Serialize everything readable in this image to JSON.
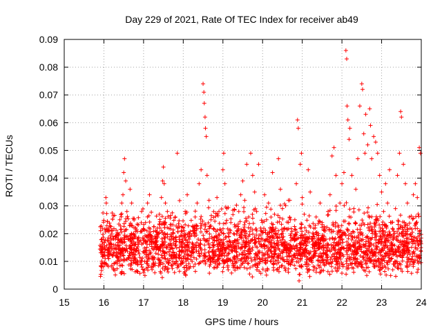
{
  "chart_data": {
    "type": "scatter",
    "title": "Day 229 of 2021, Rate Of TEC Index for receiver ab49",
    "xlabel": "GPS time / hours",
    "ylabel": "ROTI / TECUs",
    "xlim": [
      15,
      24
    ],
    "ylim": [
      0,
      0.09
    ],
    "xticks": [
      "15",
      "16",
      "17",
      "18",
      "19",
      "20",
      "21",
      "22",
      "23",
      "24"
    ],
    "yticks": [
      "0",
      "0.01",
      "0.02",
      "0.03",
      "0.04",
      "0.05",
      "0.06",
      "0.07",
      "0.08",
      "0.09"
    ],
    "grid": true,
    "marker": "plus",
    "color": "#ff0000",
    "series": [
      {
        "points": [
          [
            15.95,
            0.018
          ],
          [
            15.98,
            0.012
          ],
          [
            16.02,
            0.009
          ],
          [
            16.05,
            0.033
          ],
          [
            16.06,
            0.031
          ],
          [
            16.08,
            0.014
          ],
          [
            16.12,
            0.011
          ],
          [
            16.15,
            0.021
          ],
          [
            16.2,
            0.008
          ],
          [
            16.25,
            0.016
          ],
          [
            16.3,
            0.012
          ],
          [
            16.35,
            0.02
          ],
          [
            16.4,
            0.025
          ],
          [
            16.45,
            0.031
          ],
          [
            16.48,
            0.034
          ],
          [
            16.5,
            0.042
          ],
          [
            16.52,
            0.047
          ],
          [
            16.55,
            0.039
          ],
          [
            16.58,
            0.028
          ],
          [
            16.62,
            0.018
          ],
          [
            16.66,
            0.036
          ],
          [
            16.7,
            0.031
          ],
          [
            16.75,
            0.014
          ],
          [
            16.8,
            0.022
          ],
          [
            16.85,
            0.009
          ],
          [
            16.9,
            0.017
          ],
          [
            16.95,
            0.028
          ],
          [
            17.0,
            0.006
          ],
          [
            17.02,
            0.013
          ],
          [
            17.05,
            0.024
          ],
          [
            17.1,
            0.031
          ],
          [
            17.15,
            0.034
          ],
          [
            17.2,
            0.019
          ],
          [
            17.25,
            0.011
          ],
          [
            17.3,
            0.016
          ],
          [
            17.35,
            0.022
          ],
          [
            17.4,
            0.027
          ],
          [
            17.45,
            0.033
          ],
          [
            17.48,
            0.039
          ],
          [
            17.5,
            0.044
          ],
          [
            17.52,
            0.038
          ],
          [
            17.55,
            0.031
          ],
          [
            17.6,
            0.028
          ],
          [
            17.65,
            0.018
          ],
          [
            17.7,
            0.012
          ],
          [
            17.75,
            0.02
          ],
          [
            17.8,
            0.026
          ],
          [
            17.85,
            0.049
          ],
          [
            17.9,
            0.015
          ],
          [
            17.95,
            0.009
          ],
          [
            18.0,
            0.022
          ],
          [
            18.05,
            0.028
          ],
          [
            18.1,
            0.034
          ],
          [
            18.15,
            0.018
          ],
          [
            18.2,
            0.012
          ],
          [
            18.25,
            0.021
          ],
          [
            18.3,
            0.026
          ],
          [
            18.35,
            0.031
          ],
          [
            18.4,
            0.038
          ],
          [
            18.45,
            0.043
          ],
          [
            18.5,
            0.074
          ],
          [
            18.52,
            0.071
          ],
          [
            18.53,
            0.067
          ],
          [
            18.55,
            0.062
          ],
          [
            18.56,
            0.058
          ],
          [
            18.58,
            0.055
          ],
          [
            18.6,
            0.041
          ],
          [
            18.65,
            0.032
          ],
          [
            18.7,
            0.025
          ],
          [
            18.75,
            0.018
          ],
          [
            18.8,
            0.012
          ],
          [
            18.85,
            0.033
          ],
          [
            18.9,
            0.028
          ],
          [
            18.95,
            0.021
          ],
          [
            19.0,
            0.043
          ],
          [
            19.02,
            0.049
          ],
          [
            19.05,
            0.038
          ],
          [
            19.1,
            0.029
          ],
          [
            19.15,
            0.019
          ],
          [
            19.2,
            0.024
          ],
          [
            19.25,
            0.015
          ],
          [
            19.3,
            0.01
          ],
          [
            19.35,
            0.021
          ],
          [
            19.4,
            0.028
          ],
          [
            19.45,
            0.034
          ],
          [
            19.5,
            0.039
          ],
          [
            19.55,
            0.032
          ],
          [
            19.6,
            0.045
          ],
          [
            19.65,
            0.026
          ],
          [
            19.7,
            0.049
          ],
          [
            19.75,
            0.041
          ],
          [
            19.8,
            0.035
          ],
          [
            19.85,
            0.028
          ],
          [
            19.9,
            0.045
          ],
          [
            19.95,
            0.022
          ],
          [
            20.0,
            0.018
          ],
          [
            20.05,
            0.034
          ],
          [
            20.1,
            0.025
          ],
          [
            20.15,
            0.031
          ],
          [
            20.2,
            0.016
          ],
          [
            20.25,
            0.042
          ],
          [
            20.3,
            0.027
          ],
          [
            20.35,
            0.019
          ],
          [
            20.4,
            0.047
          ],
          [
            20.45,
            0.036
          ],
          [
            20.5,
            0.029
          ],
          [
            20.55,
            0.022
          ],
          [
            20.6,
            0.014
          ],
          [
            20.65,
            0.032
          ],
          [
            20.7,
            0.025
          ],
          [
            20.75,
            0.018
          ],
          [
            20.8,
            0.012
          ],
          [
            20.85,
            0.038
          ],
          [
            20.88,
            0.061
          ],
          [
            20.9,
            0.058
          ],
          [
            20.92,
            0.003
          ],
          [
            20.95,
            0.045
          ],
          [
            20.98,
            0.049
          ],
          [
            21.0,
            0.033
          ],
          [
            21.05,
            0.027
          ],
          [
            21.1,
            0.021
          ],
          [
            21.15,
            0.043
          ],
          [
            21.2,
            0.035
          ],
          [
            21.25,
            0.018
          ],
          [
            21.3,
            0.012
          ],
          [
            21.35,
            0.026
          ],
          [
            21.4,
            0.015
          ],
          [
            21.45,
            0.031
          ],
          [
            21.5,
            0.024
          ],
          [
            21.55,
            0.019
          ],
          [
            21.6,
            0.009
          ],
          [
            21.65,
            0.028
          ],
          [
            21.7,
            0.034
          ],
          [
            21.75,
            0.048
          ],
          [
            21.8,
            0.051
          ],
          [
            21.85,
            0.041
          ],
          [
            21.9,
            0.023
          ],
          [
            21.95,
            0.031
          ],
          [
            22.0,
            0.038
          ],
          [
            22.05,
            0.042
          ],
          [
            22.1,
            0.086
          ],
          [
            22.12,
            0.083
          ],
          [
            22.13,
            0.066
          ],
          [
            22.15,
            0.061
          ],
          [
            22.18,
            0.054
          ],
          [
            22.2,
            0.058
          ],
          [
            22.25,
            0.041
          ],
          [
            22.3,
            0.029
          ],
          [
            22.35,
            0.036
          ],
          [
            22.4,
            0.047
          ],
          [
            22.45,
            0.066
          ],
          [
            22.5,
            0.074
          ],
          [
            22.52,
            0.072
          ],
          [
            22.55,
            0.056
          ],
          [
            22.58,
            0.049
          ],
          [
            22.6,
            0.063
          ],
          [
            22.65,
            0.052
          ],
          [
            22.7,
            0.065
          ],
          [
            22.72,
            0.059
          ],
          [
            22.75,
            0.047
          ],
          [
            22.8,
            0.055
          ],
          [
            22.85,
            0.053
          ],
          [
            22.9,
            0.049
          ],
          [
            22.95,
            0.041
          ],
          [
            23.0,
            0.035
          ],
          [
            23.05,
            0.028
          ],
          [
            23.1,
            0.038
          ],
          [
            23.15,
            0.031
          ],
          [
            23.2,
            0.043
          ],
          [
            23.25,
            0.024
          ],
          [
            23.3,
            0.018
          ],
          [
            23.35,
            0.029
          ],
          [
            23.4,
            0.041
          ],
          [
            23.45,
            0.049
          ],
          [
            23.48,
            0.064
          ],
          [
            23.5,
            0.062
          ],
          [
            23.55,
            0.045
          ],
          [
            23.6,
            0.038
          ],
          [
            23.65,
            0.031
          ],
          [
            23.7,
            0.026
          ],
          [
            23.75,
            0.019
          ],
          [
            23.8,
            0.034
          ],
          [
            23.85,
            0.038
          ],
          [
            23.9,
            0.033
          ],
          [
            23.95,
            0.051
          ],
          [
            23.98,
            0.049
          ]
        ]
      }
    ],
    "dense_band": {
      "x": [
        15.9,
        24.0
      ],
      "y": [
        0.004,
        0.03
      ]
    }
  }
}
